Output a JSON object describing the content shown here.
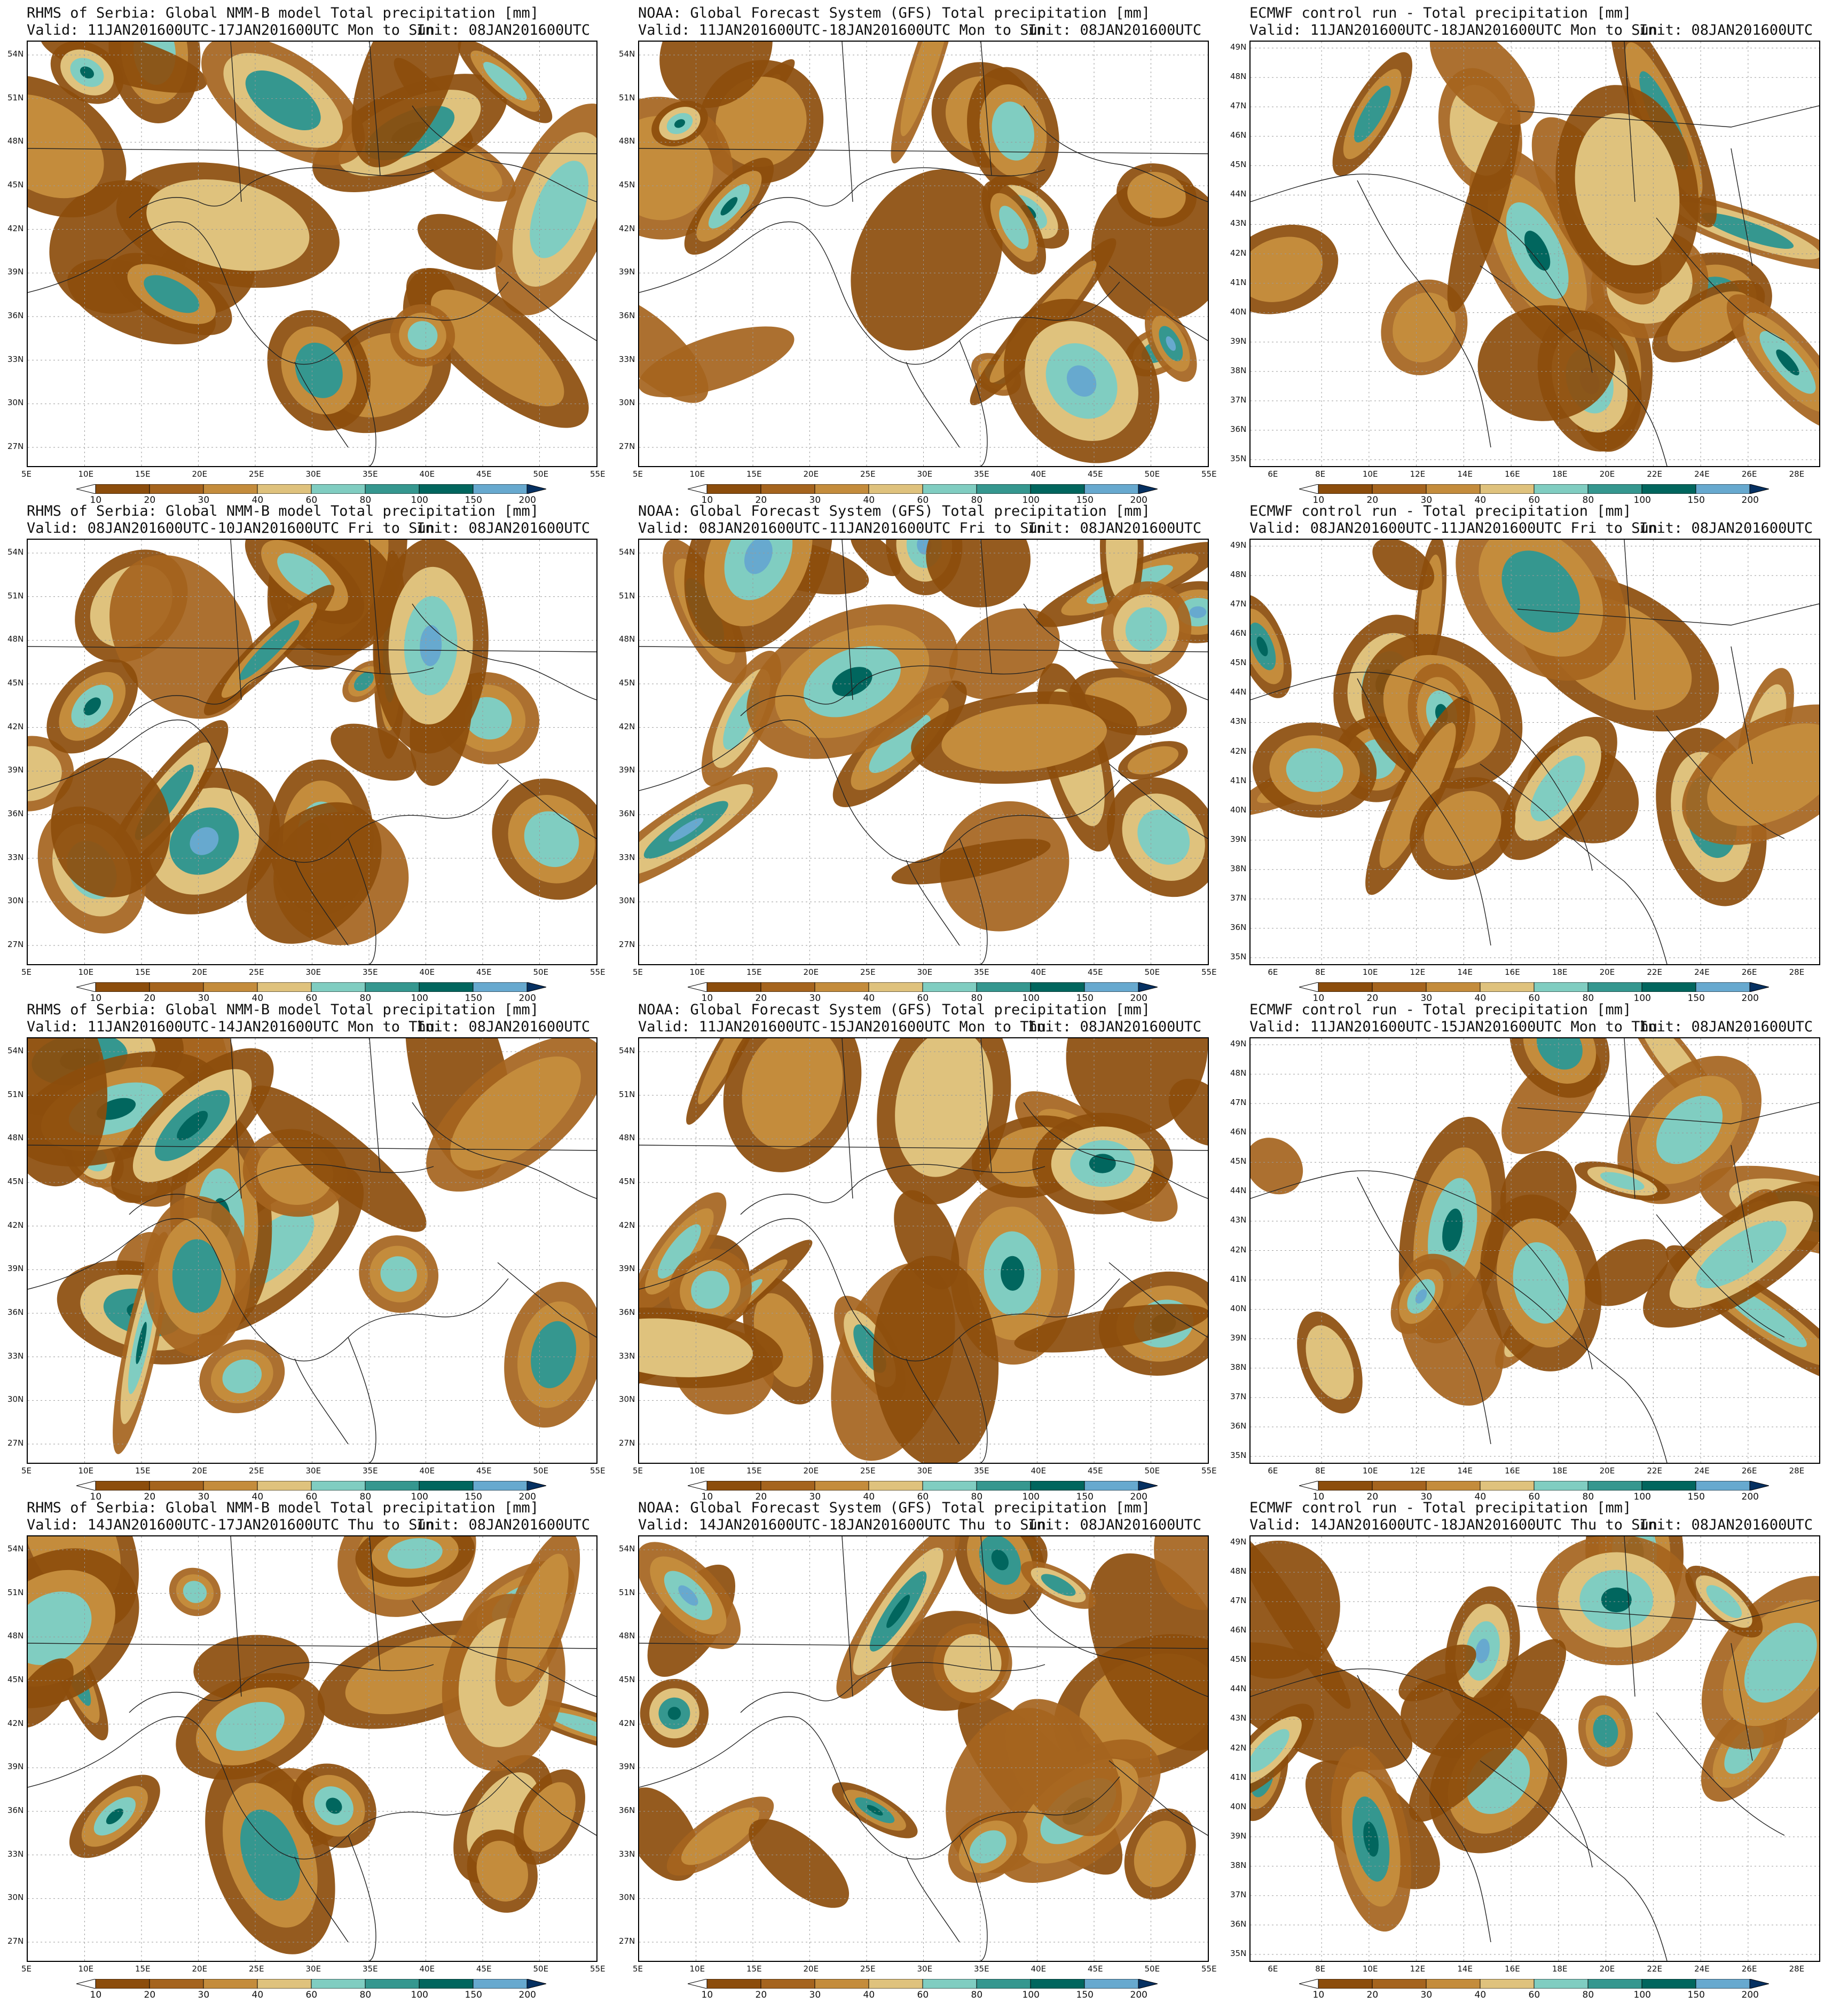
{
  "colorbar": {
    "labels": [
      "10",
      "20",
      "30",
      "40",
      "60",
      "80",
      "100",
      "150",
      "200"
    ],
    "colors": [
      "#8c4d0c",
      "#a5641e",
      "#c48c3c",
      "#dfc27d",
      "#80cdc1",
      "#35978f",
      "#01665e",
      "#67a9cf",
      "#2166ac",
      "#053061"
    ]
  },
  "rows": [
    {
      "panels": [
        {
          "title": "RHMS of Serbia: Global NMM-B model Total precipitation [mm]",
          "valid": "Valid: 11JAN201600UTC-17JAN201600UTC Mon to Sun",
          "init": "Init: 08JAN201600UTC"
        },
        {
          "title": "NOAA: Global Forecast System (GFS) Total precipitation [mm]",
          "valid": "Valid: 11JAN201600UTC-18JAN201600UTC Mon to Sun",
          "init": "Init: 08JAN201600UTC"
        },
        {
          "title": "ECMWF control run - Total precipitation [mm]",
          "valid": "Valid: 11JAN201600UTC-18JAN201600UTC Mon to Sun",
          "init": "Init: 08JAN201600UTC"
        }
      ]
    },
    {
      "panels": [
        {
          "title": "RHMS of Serbia: Global NMM-B model Total precipitation [mm]",
          "valid": "Valid: 08JAN201600UTC-10JAN201600UTC Fri to Sun",
          "init": "Init: 08JAN201600UTC"
        },
        {
          "title": "NOAA: Global Forecast System (GFS) Total precipitation [mm]",
          "valid": "Valid: 08JAN201600UTC-11JAN201600UTC Fri to Sun",
          "init": "Init: 08JAN201600UTC"
        },
        {
          "title": "ECMWF control run - Total precipitation [mm]",
          "valid": "Valid: 08JAN201600UTC-11JAN201600UTC Fri to Sun",
          "init": "Init: 08JAN201600UTC"
        }
      ]
    },
    {
      "panels": [
        {
          "title": "RHMS of Serbia: Global NMM-B model Total precipitation [mm]",
          "valid": "Valid: 11JAN201600UTC-14JAN201600UTC Mon to Thu",
          "init": "Init: 08JAN201600UTC"
        },
        {
          "title": "NOAA: Global Forecast System (GFS) Total precipitation [mm]",
          "valid": "Valid: 11JAN201600UTC-15JAN201600UTC Mon to Thu",
          "init": "Init: 08JAN201600UTC"
        },
        {
          "title": "ECMWF control run - Total precipitation [mm]",
          "valid": "Valid: 11JAN201600UTC-15JAN201600UTC Mon to Thu",
          "init": "Init: 08JAN201600UTC"
        }
      ]
    },
    {
      "panels": [
        {
          "title": "RHMS of Serbia: Global NMM-B model Total precipitation [mm]",
          "valid": "Valid: 14JAN201600UTC-17JAN201600UTC Thu to Sun",
          "init": "Init: 08JAN201600UTC"
        },
        {
          "title": "NOAA: Global Forecast System (GFS) Total precipitation [mm]",
          "valid": "Valid: 14JAN201600UTC-18JAN201600UTC Thu to Sun",
          "init": "Init: 08JAN201600UTC"
        },
        {
          "title": "ECMWF control run - Total precipitation [mm]",
          "valid": "Valid: 14JAN201600UTC-18JAN201600UTC Thu to Sun",
          "init": "Init: 08JAN201600UTC"
        }
      ]
    }
  ],
  "axes": {
    "wide": {
      "x_ticks": [
        "5E",
        "10E",
        "15E",
        "20E",
        "25E",
        "30E",
        "35E",
        "40E",
        "45E",
        "50E",
        "55E"
      ],
      "y_ticks": [
        "54N",
        "51N",
        "48N",
        "45N",
        "42N",
        "39N",
        "36N",
        "33N",
        "30N",
        "27N"
      ],
      "x_range": [
        5,
        55
      ],
      "y_range": [
        24.5,
        55
      ]
    },
    "ecmwf": {
      "x_ticks": [
        "6E",
        "8E",
        "10E",
        "12E",
        "14E",
        "16E",
        "18E",
        "20E",
        "22E",
        "24E",
        "26E",
        "28E"
      ],
      "y_ticks": [
        "49N",
        "48N",
        "47N",
        "46N",
        "45N",
        "44N",
        "43N",
        "42N",
        "41N",
        "40N",
        "39N",
        "38N",
        "37N",
        "36N",
        "35N"
      ],
      "x_range": [
        5,
        29
      ],
      "y_range": [
        35,
        49
      ]
    }
  }
}
